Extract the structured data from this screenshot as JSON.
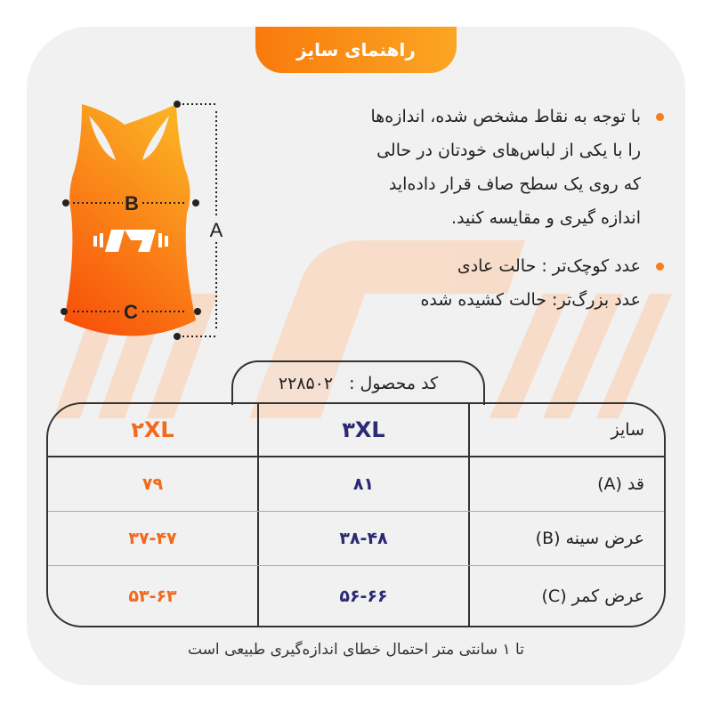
{
  "header": {
    "title": "راهنمای سایز"
  },
  "instructions": {
    "bullet1": [
      "با توجه به نقاط مشخص شده، اندازه‌ها",
      "را با یکی از لباس‌های خودتان در حالی",
      "که روی یک سطح صاف قرار داده‌اید",
      "اندازه گیری و مقایسه کنید."
    ],
    "bullet2": [
      "عدد کوچک‌تر : حالت عادی",
      "عدد بزرگ‌تر: حالت کشیده شده"
    ]
  },
  "diagram": {
    "labels": {
      "a": "A",
      "b": "B",
      "c": "C"
    }
  },
  "product_code": {
    "label": "کد محصول :",
    "value": "۲۲۸۵۰۲"
  },
  "table": {
    "headers": [
      "سایز",
      "۳XL",
      "۲XL"
    ],
    "rows": [
      [
        "قد (A)",
        "۸۱",
        "۷۹"
      ],
      [
        "عرض سینه (B)",
        "۳۸-۴۸",
        "۳۷-۴۷"
      ],
      [
        "عرض کمر (C)",
        "۵۶-۶۶",
        "۵۳-۶۳"
      ]
    ]
  },
  "footer": {
    "note": "تا ۱ سانتی متر احتمال خطای اندازه‌گیری طبیعی است"
  },
  "colors": {
    "accent": "#f4801b",
    "size_3xl": "#2b2a72",
    "size_2xl": "#f2691b",
    "panel": "#f1f1f1"
  }
}
